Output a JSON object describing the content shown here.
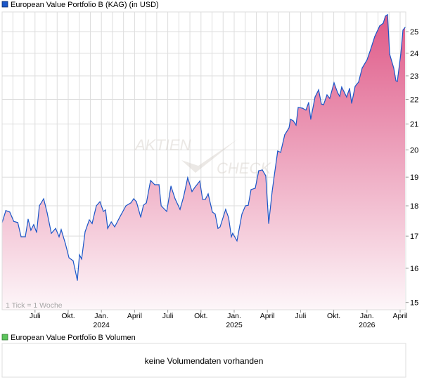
{
  "legend": {
    "price_label": "European Value Portfolio B (KAG) (in USD)",
    "price_color": "#1a56c8",
    "volume_label": "European Value Portfolio B Volumen",
    "volume_color": "#5cc45c"
  },
  "watermark": {
    "line1": "AKTIEN",
    "line2": "CHECK"
  },
  "tick_note": "1 Tick = 1 Woche",
  "volume_message": "keine Volumendaten vorhanden",
  "colors": {
    "line": "#1a56c8",
    "fill_top": "#df5a88",
    "fill_bottom": "#fdf6f9",
    "grid": "#dddddd"
  },
  "chart_data": {
    "type": "area",
    "title": "European Value Portfolio B (KAG) (in USD)",
    "xlabel": "",
    "ylabel": "USD",
    "y_scale": "log",
    "ylim": [
      14.8,
      26.0
    ],
    "xlim": [
      2023.25,
      2026.29
    ],
    "yticks": [
      15,
      16,
      17,
      18,
      19,
      20,
      21,
      22,
      23,
      24,
      25
    ],
    "xticks": [
      {
        "label": "Juli",
        "t": 2023.5
      },
      {
        "label": "Okt.",
        "t": 2023.75
      },
      {
        "label": "Jan.",
        "t": 2024.0,
        "year": "2024"
      },
      {
        "label": "April",
        "t": 2024.25
      },
      {
        "label": "Juli",
        "t": 2024.5
      },
      {
        "label": "Okt.",
        "t": 2024.75
      },
      {
        "label": "Jan.",
        "t": 2025.0,
        "year": "2025"
      },
      {
        "label": "April",
        "t": 2025.25
      },
      {
        "label": "Juli",
        "t": 2025.5
      },
      {
        "label": "Okt.",
        "t": 2025.75
      },
      {
        "label": "Jan.",
        "t": 2026.0,
        "year": "2026"
      },
      {
        "label": "April",
        "t": 2026.25
      }
    ],
    "grid": true,
    "legend_position": "top-left",
    "series": [
      {
        "name": "European Value Portfolio B (KAG)",
        "x": [
          2023.252,
          2023.28,
          2023.31,
          2023.34,
          2023.37,
          2023.395,
          2023.427,
          2023.448,
          2023.469,
          2023.49,
          2023.512,
          2023.533,
          2023.565,
          2023.591,
          2023.623,
          2023.655,
          2023.681,
          2023.697,
          2023.729,
          2023.756,
          2023.787,
          2023.819,
          2023.835,
          2023.851,
          2023.877,
          2023.909,
          2023.93,
          2023.962,
          2023.989,
          2024.015,
          2024.031,
          2024.047,
          2024.074,
          2024.1,
          2024.142,
          2024.185,
          2024.222,
          2024.243,
          2024.264,
          2024.296,
          2024.317,
          2024.339,
          2024.37,
          2024.402,
          2024.434,
          2024.45,
          2024.492,
          2024.524,
          2024.555,
          2024.592,
          2024.619,
          2024.65,
          2024.682,
          2024.703,
          2024.741,
          2024.762,
          2024.783,
          2024.804,
          2024.836,
          2024.857,
          2024.878,
          2024.894,
          2024.936,
          2024.958,
          2024.979,
          2024.989,
          2025.021,
          2025.058,
          2025.085,
          2025.106,
          2025.127,
          2025.159,
          2025.185,
          2025.212,
          2025.238,
          2025.26,
          2025.286,
          2025.302,
          2025.328,
          2025.35,
          2025.381,
          2025.413,
          2025.424,
          2025.445,
          2025.466,
          2025.482,
          2025.514,
          2025.54,
          2025.561,
          2025.577,
          2025.609,
          2025.636,
          2025.657,
          2025.673,
          2025.699,
          2025.72,
          2025.752,
          2025.779,
          2025.795,
          2025.81,
          2025.847,
          2025.869,
          2025.885,
          2025.911,
          2025.937,
          2025.964,
          2026.001,
          2026.028,
          2026.059,
          2026.096,
          2026.123,
          2026.139,
          2026.155,
          2026.171,
          2026.202,
          2026.218,
          2026.229,
          2026.255,
          2026.271,
          2026.287
        ],
        "y": [
          17.44,
          17.84,
          17.79,
          17.48,
          17.44,
          16.98,
          16.98,
          17.55,
          17.19,
          17.37,
          17.12,
          18.0,
          18.24,
          17.77,
          17.09,
          17.25,
          16.98,
          17.21,
          16.76,
          16.32,
          16.23,
          15.64,
          16.41,
          16.28,
          17.14,
          17.53,
          17.41,
          18.0,
          18.14,
          17.81,
          17.86,
          17.25,
          17.46,
          17.3,
          17.65,
          18.0,
          18.1,
          18.24,
          18.14,
          17.62,
          18.02,
          18.1,
          18.88,
          18.73,
          18.73,
          18.0,
          17.81,
          18.68,
          18.24,
          17.88,
          18.31,
          18.98,
          18.49,
          18.63,
          18.86,
          18.22,
          18.22,
          18.41,
          17.79,
          17.72,
          17.25,
          17.3,
          17.88,
          17.6,
          16.98,
          17.09,
          16.85,
          17.72,
          18.0,
          18.02,
          18.56,
          18.61,
          19.23,
          19.26,
          19.05,
          17.41,
          18.49,
          19.05,
          19.96,
          19.91,
          20.58,
          20.85,
          21.19,
          21.13,
          20.96,
          21.67,
          21.64,
          21.56,
          21.87,
          21.19,
          22.1,
          22.4,
          21.81,
          21.78,
          22.19,
          22.04,
          22.7,
          22.28,
          22.13,
          22.52,
          22.1,
          22.46,
          21.84,
          22.55,
          22.73,
          23.34,
          23.71,
          24.18,
          24.77,
          25.27,
          25.4,
          25.74,
          25.81,
          23.96,
          23.34,
          22.79,
          22.76,
          23.96,
          25.07,
          25.2
        ]
      }
    ]
  }
}
